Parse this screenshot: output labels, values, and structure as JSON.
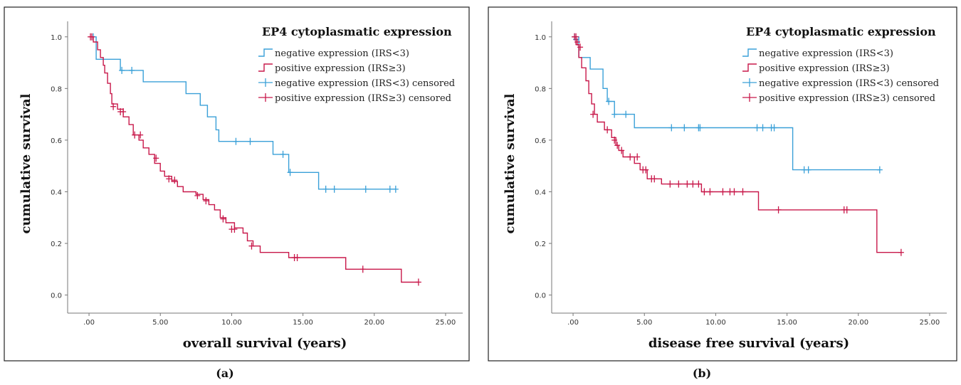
{
  "colors": {
    "negative": "#3aa0d8",
    "positive": "#c8184a"
  },
  "chart_data": [
    {
      "type": "line",
      "panel_caption": "(a)",
      "title": "EP4 cytoplasmatic expression",
      "xlabel": "overall survival (years)",
      "ylabel": "cumulative survival",
      "xlim": [
        -1.5,
        26.2
      ],
      "ylim": [
        -0.07,
        1.06
      ],
      "xticks": [
        0,
        5,
        10,
        15,
        20,
        25
      ],
      "xtick_labels": [
        ".00",
        "5.00",
        "10.00",
        "15.00",
        "20.00",
        "25.00"
      ],
      "yticks": [
        0,
        0.2,
        0.4,
        0.6,
        0.8,
        1.0
      ],
      "ytick_labels": [
        "0.0",
        "0.2",
        "0.4",
        "0.6",
        "0.8",
        "1.0"
      ],
      "legend_position": "top-right",
      "legend": [
        "negative expression (IRS<3)",
        "positive expression (IRS≥3)",
        "negative expression (IRS<3) censored",
        "positive expression (IRS≥3) censored"
      ],
      "series": [
        {
          "name": "negative expression (IRS<3)",
          "color_key": "negative",
          "steps": [
            [
              0,
              1.0
            ],
            [
              0.5,
              0.913
            ],
            [
              2.2,
              0.87
            ],
            [
              3.8,
              0.826
            ],
            [
              6.8,
              0.78
            ],
            [
              7.8,
              0.735
            ],
            [
              8.3,
              0.69
            ],
            [
              8.9,
              0.64
            ],
            [
              9.1,
              0.595
            ],
            [
              12.9,
              0.545
            ],
            [
              14.0,
              0.475
            ],
            [
              16.1,
              0.41
            ],
            [
              21.5,
              0.41
            ]
          ],
          "censored": [
            [
              0.3,
              1.0
            ],
            [
              2.3,
              0.87
            ],
            [
              3.0,
              0.87
            ],
            [
              10.3,
              0.595
            ],
            [
              11.3,
              0.595
            ],
            [
              13.6,
              0.545
            ],
            [
              14.1,
              0.475
            ],
            [
              16.6,
              0.41
            ],
            [
              17.2,
              0.41
            ],
            [
              19.4,
              0.41
            ],
            [
              21.1,
              0.41
            ],
            [
              21.5,
              0.41
            ]
          ]
        },
        {
          "name": "positive expression (IRS≥3)",
          "color_key": "positive",
          "steps": [
            [
              0,
              1.0
            ],
            [
              0.3,
              0.98
            ],
            [
              0.6,
              0.95
            ],
            [
              0.8,
              0.92
            ],
            [
              1.0,
              0.89
            ],
            [
              1.1,
              0.86
            ],
            [
              1.3,
              0.82
            ],
            [
              1.5,
              0.78
            ],
            [
              1.6,
              0.74
            ],
            [
              2.0,
              0.72
            ],
            [
              2.4,
              0.69
            ],
            [
              2.8,
              0.66
            ],
            [
              3.1,
              0.62
            ],
            [
              3.5,
              0.6
            ],
            [
              3.8,
              0.57
            ],
            [
              4.2,
              0.545
            ],
            [
              4.6,
              0.51
            ],
            [
              5.0,
              0.48
            ],
            [
              5.3,
              0.46
            ],
            [
              5.8,
              0.44
            ],
            [
              6.2,
              0.42
            ],
            [
              6.6,
              0.4
            ],
            [
              7.5,
              0.39
            ],
            [
              8.0,
              0.37
            ],
            [
              8.4,
              0.35
            ],
            [
              8.8,
              0.33
            ],
            [
              9.2,
              0.3
            ],
            [
              9.6,
              0.28
            ],
            [
              10.2,
              0.26
            ],
            [
              10.8,
              0.24
            ],
            [
              11.1,
              0.21
            ],
            [
              11.5,
              0.19
            ],
            [
              12.0,
              0.165
            ],
            [
              14.0,
              0.145
            ],
            [
              18.0,
              0.1
            ],
            [
              21.9,
              0.05
            ],
            [
              23.1,
              0.05
            ]
          ],
          "censored": [
            [
              0.1,
              1.0
            ],
            [
              0.2,
              1.0
            ],
            [
              1.7,
              0.73
            ],
            [
              2.2,
              0.71
            ],
            [
              2.4,
              0.71
            ],
            [
              3.2,
              0.62
            ],
            [
              3.6,
              0.62
            ],
            [
              4.7,
              0.53
            ],
            [
              5.6,
              0.45
            ],
            [
              6.0,
              0.445
            ],
            [
              7.6,
              0.385
            ],
            [
              8.2,
              0.365
            ],
            [
              9.4,
              0.295
            ],
            [
              10.0,
              0.255
            ],
            [
              10.2,
              0.255
            ],
            [
              11.4,
              0.19
            ],
            [
              14.4,
              0.145
            ],
            [
              14.6,
              0.145
            ],
            [
              19.2,
              0.1
            ],
            [
              23.1,
              0.05
            ]
          ]
        }
      ]
    },
    {
      "type": "line",
      "panel_caption": "(b)",
      "title": "EP4 cytoplasmatic expression",
      "xlabel": "disease free survival (years)",
      "ylabel": "cumulative survival",
      "xlim": [
        -1.5,
        26.2
      ],
      "ylim": [
        -0.07,
        1.06
      ],
      "xticks": [
        0,
        5,
        10,
        15,
        20,
        25
      ],
      "xtick_labels": [
        ".00",
        "5.00",
        "10.00",
        "15.00",
        "20.00",
        "25.00"
      ],
      "yticks": [
        0,
        0.2,
        0.4,
        0.6,
        0.8,
        1.0
      ],
      "ytick_labels": [
        "0.0",
        "0.2",
        "0.4",
        "0.6",
        "0.8",
        "1.0"
      ],
      "legend_position": "top-right",
      "legend": [
        "negative expression (IRS<3)",
        "positive expression (IRS≥3)",
        "negative expression (IRS<3) censored",
        "positive expression (IRS≥3) censored"
      ],
      "series": [
        {
          "name": "negative expression (IRS<3)",
          "color_key": "negative",
          "steps": [
            [
              0,
              1.0
            ],
            [
              0.4,
              0.92
            ],
            [
              1.2,
              0.875
            ],
            [
              2.1,
              0.8
            ],
            [
              2.4,
              0.75
            ],
            [
              2.9,
              0.7
            ],
            [
              4.3,
              0.648
            ],
            [
              15.4,
              0.485
            ],
            [
              21.5,
              0.485
            ]
          ],
          "censored": [
            [
              0.1,
              1.0
            ],
            [
              0.2,
              0.99
            ],
            [
              2.5,
              0.75
            ],
            [
              2.9,
              0.7
            ],
            [
              3.7,
              0.7
            ],
            [
              6.9,
              0.648
            ],
            [
              7.8,
              0.648
            ],
            [
              8.8,
              0.648
            ],
            [
              8.9,
              0.648
            ],
            [
              12.9,
              0.648
            ],
            [
              13.3,
              0.648
            ],
            [
              13.9,
              0.648
            ],
            [
              14.1,
              0.648
            ],
            [
              16.2,
              0.485
            ],
            [
              16.5,
              0.485
            ],
            [
              21.5,
              0.485
            ]
          ]
        },
        {
          "name": "positive expression (IRS≥3)",
          "color_key": "positive",
          "steps": [
            [
              0,
              1.0
            ],
            [
              0.2,
              0.97
            ],
            [
              0.4,
              0.92
            ],
            [
              0.6,
              0.88
            ],
            [
              0.9,
              0.83
            ],
            [
              1.1,
              0.78
            ],
            [
              1.3,
              0.74
            ],
            [
              1.5,
              0.7
            ],
            [
              1.7,
              0.67
            ],
            [
              2.2,
              0.64
            ],
            [
              2.7,
              0.61
            ],
            [
              3.0,
              0.58
            ],
            [
              3.2,
              0.56
            ],
            [
              3.5,
              0.535
            ],
            [
              4.3,
              0.51
            ],
            [
              4.7,
              0.485
            ],
            [
              5.2,
              0.45
            ],
            [
              6.2,
              0.43
            ],
            [
              9.0,
              0.4
            ],
            [
              13.0,
              0.33
            ],
            [
              21.3,
              0.165
            ],
            [
              23.0,
              0.165
            ]
          ],
          "censored": [
            [
              0.1,
              1.0
            ],
            [
              0.2,
              1.0
            ],
            [
              0.3,
              0.98
            ],
            [
              0.5,
              0.96
            ],
            [
              1.4,
              0.7
            ],
            [
              2.4,
              0.64
            ],
            [
              2.9,
              0.6
            ],
            [
              3.1,
              0.58
            ],
            [
              3.4,
              0.56
            ],
            [
              4.0,
              0.535
            ],
            [
              4.5,
              0.535
            ],
            [
              4.9,
              0.485
            ],
            [
              5.1,
              0.485
            ],
            [
              5.5,
              0.45
            ],
            [
              5.7,
              0.45
            ],
            [
              6.8,
              0.43
            ],
            [
              7.4,
              0.43
            ],
            [
              8.0,
              0.43
            ],
            [
              8.4,
              0.43
            ],
            [
              8.8,
              0.43
            ],
            [
              9.2,
              0.4
            ],
            [
              9.6,
              0.4
            ],
            [
              10.5,
              0.4
            ],
            [
              11.0,
              0.4
            ],
            [
              11.3,
              0.4
            ],
            [
              11.9,
              0.4
            ],
            [
              14.4,
              0.33
            ],
            [
              19.0,
              0.33
            ],
            [
              19.2,
              0.33
            ],
            [
              23.0,
              0.165
            ]
          ]
        }
      ]
    }
  ]
}
